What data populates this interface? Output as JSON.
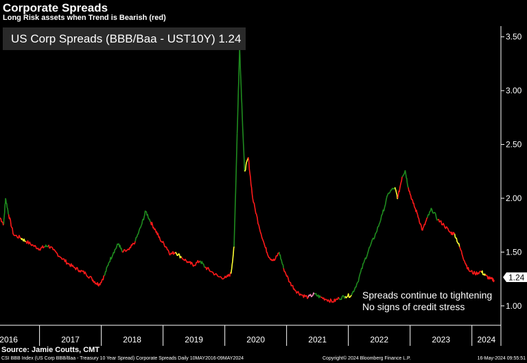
{
  "header": {
    "title": "Corporate Spreads",
    "subtitle": "Long Risk assets when Trend is Bearish (red)"
  },
  "legend": {
    "label": "US Corp Spreads (BBB/Baa - UST10Y) 1.24"
  },
  "annotation": {
    "line1": "Spreads continue to tightening",
    "line2": "No signs of credit stress"
  },
  "source": "Source: Jamie Coutts, CMT",
  "footer": {
    "left": "CSI BBB Index (US Corp BBB/Baa - Treasury 10 Year Spread) Corporate Spreads  Daily 10MAY2016-09MAY2024",
    "middle": "Copyright© 2024 Bloomberg Finance L.P.",
    "right": "16-May-2024 09:55:51"
  },
  "colors": {
    "bearish": "#ff1a1a",
    "bullish": "#1f8c1f",
    "transition_yellow": "#ffff33",
    "transition_pink": "#ff88bb",
    "background": "#000000",
    "last_value_box": "#ffffff"
  },
  "chart_data": {
    "type": "line",
    "series": [
      {
        "name": "US Corp Spreads (BBB/Baa - UST10Y)",
        "last_value": "1.24",
        "points": [
          [
            2016.36,
            1.82,
            "r"
          ],
          [
            2016.42,
            1.76,
            "g"
          ],
          [
            2016.45,
            2.0,
            "g"
          ],
          [
            2016.5,
            1.85,
            "r"
          ],
          [
            2016.58,
            1.66,
            "r"
          ],
          [
            2016.7,
            1.63,
            "y"
          ],
          [
            2016.78,
            1.6,
            "r"
          ],
          [
            2016.9,
            1.56,
            "r"
          ],
          [
            2017.0,
            1.53,
            "r"
          ],
          [
            2017.08,
            1.55,
            "g"
          ],
          [
            2017.14,
            1.56,
            "r"
          ],
          [
            2017.22,
            1.52,
            "r"
          ],
          [
            2017.35,
            1.45,
            "r"
          ],
          [
            2017.45,
            1.4,
            "r"
          ],
          [
            2017.55,
            1.36,
            "r"
          ],
          [
            2017.65,
            1.33,
            "r"
          ],
          [
            2017.75,
            1.3,
            "r"
          ],
          [
            2017.85,
            1.25,
            "r"
          ],
          [
            2017.92,
            1.21,
            "r"
          ],
          [
            2017.97,
            1.2,
            "r"
          ],
          [
            2018.05,
            1.28,
            "g"
          ],
          [
            2018.12,
            1.4,
            "g"
          ],
          [
            2018.2,
            1.5,
            "g"
          ],
          [
            2018.28,
            1.58,
            "g"
          ],
          [
            2018.34,
            1.5,
            "r"
          ],
          [
            2018.45,
            1.52,
            "r"
          ],
          [
            2018.55,
            1.6,
            "g"
          ],
          [
            2018.65,
            1.75,
            "g"
          ],
          [
            2018.72,
            1.88,
            "g"
          ],
          [
            2018.8,
            1.78,
            "r"
          ],
          [
            2018.88,
            1.7,
            "r"
          ],
          [
            2018.95,
            1.62,
            "r"
          ],
          [
            2019.05,
            1.55,
            "r"
          ],
          [
            2019.12,
            1.48,
            "r"
          ],
          [
            2019.2,
            1.5,
            "y"
          ],
          [
            2019.3,
            1.45,
            "r"
          ],
          [
            2019.42,
            1.4,
            "r"
          ],
          [
            2019.5,
            1.38,
            "r"
          ],
          [
            2019.6,
            1.42,
            "g"
          ],
          [
            2019.68,
            1.36,
            "r"
          ],
          [
            2019.78,
            1.32,
            "r"
          ],
          [
            2019.9,
            1.27,
            "r"
          ],
          [
            2020.02,
            1.26,
            "r"
          ],
          [
            2020.1,
            1.3,
            "y"
          ],
          [
            2020.15,
            1.55,
            "g"
          ],
          [
            2020.2,
            2.6,
            "g"
          ],
          [
            2020.24,
            3.4,
            "g"
          ],
          [
            2020.28,
            2.8,
            "g"
          ],
          [
            2020.32,
            2.25,
            "y"
          ],
          [
            2020.38,
            2.38,
            "r"
          ],
          [
            2020.45,
            2.0,
            "r"
          ],
          [
            2020.55,
            1.75,
            "r"
          ],
          [
            2020.65,
            1.55,
            "r"
          ],
          [
            2020.72,
            1.45,
            "r"
          ],
          [
            2020.8,
            1.42,
            "r"
          ],
          [
            2020.88,
            1.5,
            "g"
          ],
          [
            2020.95,
            1.35,
            "r"
          ],
          [
            2021.05,
            1.22,
            "r"
          ],
          [
            2021.15,
            1.14,
            "r"
          ],
          [
            2021.25,
            1.1,
            "r"
          ],
          [
            2021.35,
            1.08,
            "p"
          ],
          [
            2021.45,
            1.11,
            "g"
          ],
          [
            2021.55,
            1.08,
            "r"
          ],
          [
            2021.65,
            1.06,
            "r"
          ],
          [
            2021.75,
            1.04,
            "r"
          ],
          [
            2021.85,
            1.07,
            "g"
          ],
          [
            2021.95,
            1.09,
            "y"
          ],
          [
            2022.05,
            1.1,
            "g"
          ],
          [
            2022.15,
            1.22,
            "g"
          ],
          [
            2022.25,
            1.4,
            "g"
          ],
          [
            2022.35,
            1.55,
            "g"
          ],
          [
            2022.45,
            1.68,
            "g"
          ],
          [
            2022.55,
            1.85,
            "g"
          ],
          [
            2022.65,
            2.05,
            "g"
          ],
          [
            2022.75,
            2.1,
            "y"
          ],
          [
            2022.8,
            2.0,
            "r"
          ],
          [
            2022.87,
            2.2,
            "g"
          ],
          [
            2022.92,
            2.26,
            "g"
          ],
          [
            2022.97,
            2.1,
            "r"
          ],
          [
            2023.05,
            1.95,
            "r"
          ],
          [
            2023.12,
            1.85,
            "r"
          ],
          [
            2023.2,
            1.7,
            "r"
          ],
          [
            2023.28,
            1.82,
            "g"
          ],
          [
            2023.35,
            1.9,
            "g"
          ],
          [
            2023.45,
            1.8,
            "r"
          ],
          [
            2023.55,
            1.75,
            "r"
          ],
          [
            2023.65,
            1.68,
            "r"
          ],
          [
            2023.72,
            1.67,
            "y"
          ],
          [
            2023.8,
            1.55,
            "r"
          ],
          [
            2023.88,
            1.42,
            "r"
          ],
          [
            2023.95,
            1.33,
            "r"
          ],
          [
            2024.05,
            1.3,
            "r"
          ],
          [
            2024.15,
            1.32,
            "y"
          ],
          [
            2024.22,
            1.28,
            "r"
          ],
          [
            2024.3,
            1.25,
            "r"
          ],
          [
            2024.36,
            1.24,
            "r"
          ]
        ]
      }
    ],
    "x_ticks": [
      "2016",
      "2017",
      "2018",
      "2019",
      "2020",
      "2021",
      "2022",
      "2023",
      "2024"
    ],
    "y_ticks": [
      "1.00",
      "1.50",
      "2.00",
      "2.50",
      "3.00",
      "3.50"
    ],
    "ylim": [
      0.82,
      3.6
    ],
    "xlim": [
      2016.36,
      2024.47
    ],
    "y_axis_side": "right",
    "grid": false
  }
}
